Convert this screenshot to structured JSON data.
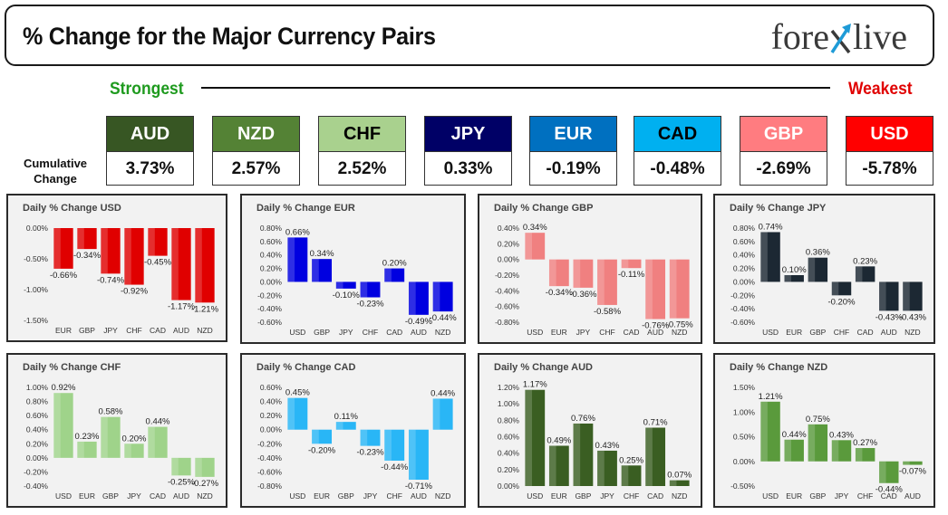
{
  "header": {
    "title": "% Change for the Major Currency Pairs",
    "logo_text_left": "fore",
    "logo_text_right": "live"
  },
  "strength": {
    "strongest_label": "Strongest",
    "weakest_label": "Weakest",
    "cumulative_label_line1": "Cumulative",
    "cumulative_label_line2": "Change"
  },
  "cumulative": [
    {
      "name": "AUD",
      "value": "3.73%",
      "color": "#375623",
      "text_color": "#ffffff"
    },
    {
      "name": "NZD",
      "value": "2.57%",
      "color": "#548235",
      "text_color": "#ffffff"
    },
    {
      "name": "CHF",
      "value": "2.52%",
      "color": "#a9d18e",
      "text_color": "#000000"
    },
    {
      "name": "JPY",
      "value": "0.33%",
      "color": "#000066",
      "text_color": "#ffffff"
    },
    {
      "name": "EUR",
      "value": "-0.19%",
      "color": "#0070c0",
      "text_color": "#ffffff"
    },
    {
      "name": "CAD",
      "value": "-0.48%",
      "color": "#00b0f0",
      "text_color": "#000000"
    },
    {
      "name": "GBP",
      "value": "-2.69%",
      "color": "#ff7c80",
      "text_color": "#ffffff"
    },
    {
      "name": "USD",
      "value": "-5.78%",
      "color": "#ff0000",
      "text_color": "#ffffff"
    }
  ],
  "chart_data": [
    {
      "type": "bar",
      "title": "Daily % Change USD",
      "color": "#e00000",
      "categories": [
        "EUR",
        "GBP",
        "JPY",
        "CHF",
        "CAD",
        "AUD",
        "NZD"
      ],
      "values": [
        -0.66,
        -0.34,
        -0.74,
        -0.92,
        -0.45,
        -1.17,
        -1.21
      ],
      "labels": [
        "-0.66%",
        "-0.34%",
        "-0.74%",
        "-0.92%",
        "-0.45%",
        "-1.17%",
        "-1.21%"
      ],
      "ylim": [
        -1.5,
        0.0
      ],
      "yticks": [
        0.0,
        -0.5,
        -1.0,
        -1.5
      ],
      "ytick_labels": [
        "0.00%",
        "-0.50%",
        "-1.00%",
        "-1.50%"
      ]
    },
    {
      "type": "bar",
      "title": "Daily % Change EUR",
      "color": "#0000e0",
      "categories": [
        "USD",
        "GBP",
        "JPY",
        "CHF",
        "CAD",
        "AUD",
        "NZD"
      ],
      "values": [
        0.66,
        0.34,
        -0.1,
        -0.23,
        0.2,
        -0.49,
        -0.44
      ],
      "labels": [
        "0.66%",
        "0.34%",
        "-0.10%",
        "-0.23%",
        "0.20%",
        "-0.49%",
        "-0.44%"
      ],
      "ylim": [
        -0.6,
        0.8
      ],
      "yticks": [
        0.8,
        0.6,
        0.4,
        0.2,
        0.0,
        -0.2,
        -0.4,
        -0.6
      ],
      "ytick_labels": [
        "0.80%",
        "0.60%",
        "0.40%",
        "0.20%",
        "0.00%",
        "-0.20%",
        "-0.40%",
        "-0.60%"
      ]
    },
    {
      "type": "bar",
      "title": "Daily % Change GBP",
      "color": "#f08080",
      "categories": [
        "USD",
        "EUR",
        "JPY",
        "CHF",
        "CAD",
        "AUD",
        "NZD"
      ],
      "values": [
        0.34,
        -0.34,
        -0.36,
        -0.58,
        -0.11,
        -0.76,
        -0.75
      ],
      "labels": [
        "0.34%",
        "-0.34%",
        "-0.36%",
        "-0.58%",
        "-0.11%",
        "-0.76%",
        "-0.75%"
      ],
      "ylim": [
        -0.8,
        0.4
      ],
      "yticks": [
        0.4,
        0.2,
        0.0,
        -0.2,
        -0.4,
        -0.6,
        -0.8
      ],
      "ytick_labels": [
        "0.40%",
        "0.20%",
        "0.00%",
        "-0.20%",
        "-0.40%",
        "-0.60%",
        "-0.80%"
      ]
    },
    {
      "type": "bar",
      "title": "Daily % Change JPY",
      "color": "#1c2833",
      "categories": [
        "USD",
        "EUR",
        "GBP",
        "CHF",
        "CAD",
        "AUD",
        "NZD"
      ],
      "values": [
        0.74,
        0.1,
        0.36,
        -0.2,
        0.23,
        -0.43,
        -0.43
      ],
      "labels": [
        "0.74%",
        "0.10%",
        "0.36%",
        "-0.20%",
        "0.23%",
        "-0.43%",
        "-0.43%"
      ],
      "ylim": [
        -0.6,
        0.8
      ],
      "yticks": [
        0.8,
        0.6,
        0.4,
        0.2,
        0.0,
        -0.2,
        -0.4,
        -0.6
      ],
      "ytick_labels": [
        "0.80%",
        "0.60%",
        "0.40%",
        "0.20%",
        "0.00%",
        "-0.20%",
        "-0.40%",
        "-0.60%"
      ]
    },
    {
      "type": "bar",
      "title": "Daily % Change CHF",
      "color": "#9fd38a",
      "categories": [
        "USD",
        "EUR",
        "GBP",
        "JPY",
        "CAD",
        "AUD",
        "NZD"
      ],
      "values": [
        0.92,
        0.23,
        0.58,
        0.2,
        0.44,
        -0.25,
        -0.27
      ],
      "labels": [
        "0.92%",
        "0.23%",
        "0.58%",
        "0.20%",
        "0.44%",
        "-0.25%",
        "-0.27%"
      ],
      "ylim": [
        -0.4,
        1.0
      ],
      "yticks": [
        1.0,
        0.8,
        0.6,
        0.4,
        0.2,
        0.0,
        -0.2,
        -0.4
      ],
      "ytick_labels": [
        "1.00%",
        "0.80%",
        "0.60%",
        "0.40%",
        "0.20%",
        "0.00%",
        "-0.20%",
        "-0.40%"
      ]
    },
    {
      "type": "bar",
      "title": "Daily % Change CAD",
      "color": "#29b6f6",
      "categories": [
        "USD",
        "EUR",
        "GBP",
        "JPY",
        "CHF",
        "AUD",
        "NZD"
      ],
      "values": [
        0.45,
        -0.2,
        0.11,
        -0.23,
        -0.44,
        -0.71,
        0.44
      ],
      "labels": [
        "0.45%",
        "-0.20%",
        "0.11%",
        "-0.23%",
        "-0.44%",
        "-0.71%",
        "0.44%"
      ],
      "ylim": [
        -0.8,
        0.6
      ],
      "yticks": [
        0.6,
        0.4,
        0.2,
        0.0,
        -0.2,
        -0.4,
        -0.6,
        -0.8
      ],
      "ytick_labels": [
        "0.60%",
        "0.40%",
        "0.20%",
        "0.00%",
        "-0.20%",
        "-0.40%",
        "-0.60%",
        "-0.80%"
      ]
    },
    {
      "type": "bar",
      "title": "Daily % Change AUD",
      "color": "#3a5e22",
      "categories": [
        "USD",
        "EUR",
        "GBP",
        "JPY",
        "CHF",
        "CAD",
        "NZD"
      ],
      "values": [
        1.17,
        0.49,
        0.76,
        0.43,
        0.25,
        0.71,
        0.07
      ],
      "labels": [
        "1.17%",
        "0.49%",
        "0.76%",
        "0.43%",
        "0.25%",
        "0.71%",
        "0.07%"
      ],
      "ylim": [
        0.0,
        1.2
      ],
      "yticks": [
        1.2,
        1.0,
        0.8,
        0.6,
        0.4,
        0.2,
        0.0
      ],
      "ytick_labels": [
        "1.20%",
        "1.00%",
        "0.80%",
        "0.60%",
        "0.40%",
        "0.20%",
        "0.00%"
      ]
    },
    {
      "type": "bar",
      "title": "Daily % Change NZD",
      "color": "#5a9a3c",
      "categories": [
        "USD",
        "EUR",
        "GBP",
        "JPY",
        "CHF",
        "CAD",
        "AUD"
      ],
      "values": [
        1.21,
        0.44,
        0.75,
        0.43,
        0.27,
        -0.44,
        -0.07
      ],
      "labels": [
        "1.21%",
        "0.44%",
        "0.75%",
        "0.43%",
        "0.27%",
        "-0.44%",
        "-0.07%"
      ],
      "ylim": [
        -0.5,
        1.5
      ],
      "yticks": [
        1.5,
        1.0,
        0.5,
        0.0,
        -0.5
      ],
      "ytick_labels": [
        "1.50%",
        "1.00%",
        "0.50%",
        "0.00%",
        "-0.50%"
      ]
    }
  ]
}
